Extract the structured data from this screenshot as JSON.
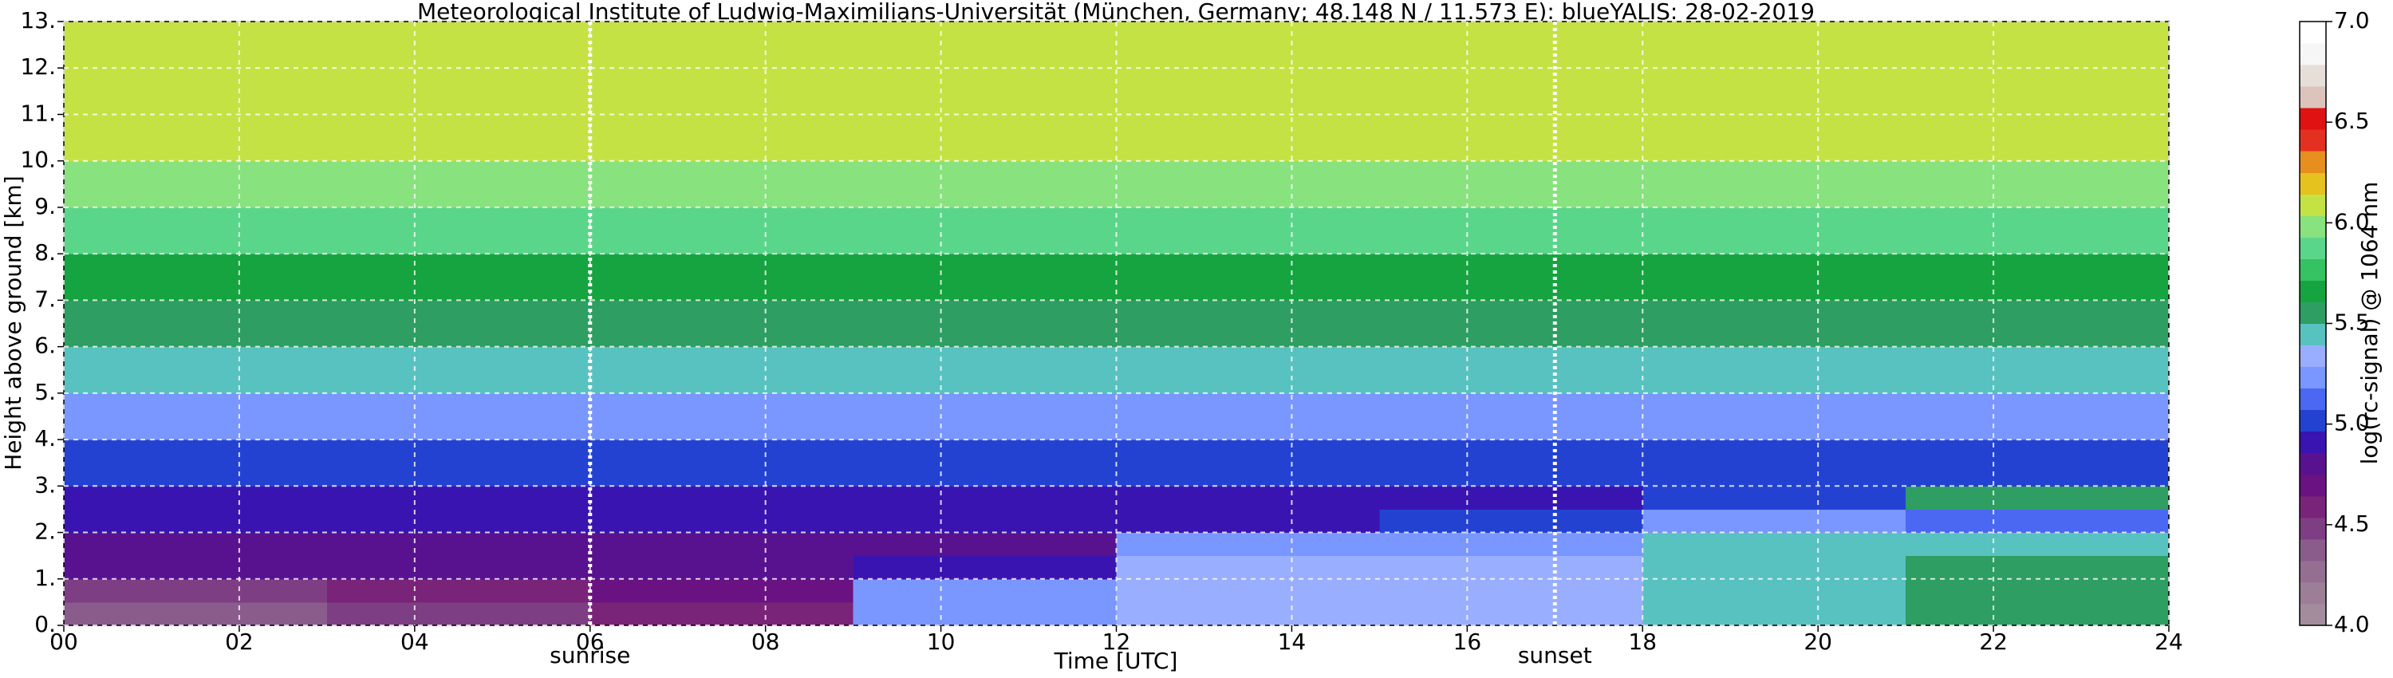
{
  "chart_data": {
    "type": "heatmap",
    "title": "Meteorological Institute of Ludwig-Maximilians-Universität (München, Germany; 48.148 N / 11.573 E):    blueYALIS: 28-02-2019",
    "xlabel": "Time [UTC]",
    "ylabel": "Height above ground [km]",
    "colorbar_label": "log(rc-signal) @ 1064 nm",
    "x_edges": [
      0,
      3,
      6,
      9,
      12,
      15,
      18,
      21,
      24
    ],
    "y_edges": [
      0,
      0.5,
      1,
      1.5,
      2,
      2.5,
      3,
      4,
      5,
      6,
      7,
      8,
      9,
      10,
      11,
      12,
      13
    ],
    "z": [
      [
        4.4,
        4.5,
        4.6,
        5.2,
        5.3,
        5.3,
        5.4,
        5.6
      ],
      [
        4.5,
        4.6,
        4.7,
        5.2,
        5.3,
        5.3,
        5.4,
        5.6
      ],
      [
        4.8,
        4.8,
        4.8,
        4.9,
        5.3,
        5.3,
        5.4,
        5.5
      ],
      [
        4.8,
        4.8,
        4.8,
        4.8,
        5.2,
        5.2,
        5.4,
        5.4
      ],
      [
        4.9,
        4.9,
        4.9,
        4.9,
        4.9,
        5.0,
        5.2,
        5.1
      ],
      [
        4.9,
        4.9,
        4.9,
        4.9,
        4.9,
        4.9,
        5.0,
        5.5
      ],
      [
        5.0,
        5.0,
        5.0,
        5.0,
        5.0,
        5.0,
        5.0,
        5.0
      ],
      [
        5.2,
        5.2,
        5.2,
        5.2,
        5.2,
        5.2,
        5.2,
        5.2
      ],
      [
        5.4,
        5.4,
        5.4,
        5.4,
        5.4,
        5.4,
        5.4,
        5.4
      ],
      [
        5.6,
        5.6,
        5.6,
        5.6,
        5.6,
        5.6,
        5.6,
        5.6
      ],
      [
        5.7,
        5.7,
        5.7,
        5.7,
        5.7,
        5.7,
        5.7,
        5.7
      ],
      [
        5.9,
        5.9,
        5.9,
        5.9,
        5.9,
        5.9,
        5.9,
        5.9
      ],
      [
        6.0,
        6.0,
        6.0,
        6.0,
        6.0,
        6.0,
        6.0,
        6.0
      ],
      [
        6.1,
        6.1,
        6.1,
        6.1,
        6.1,
        6.1,
        6.1,
        6.1
      ],
      [
        6.1,
        6.1,
        6.1,
        6.1,
        6.1,
        6.1,
        6.1,
        6.1
      ],
      [
        6.1,
        6.1,
        6.1,
        6.1,
        6.1,
        6.1,
        6.1,
        6.1
      ]
    ],
    "xlim": [
      0,
      24
    ],
    "ylim": [
      0,
      13
    ],
    "zlim": [
      4,
      7
    ],
    "xticks": [
      {
        "value": 0,
        "label": "00"
      },
      {
        "value": 2,
        "label": "02"
      },
      {
        "value": 4,
        "label": "04"
      },
      {
        "value": 6,
        "label": "06"
      },
      {
        "value": 8,
        "label": "08"
      },
      {
        "value": 10,
        "label": "10"
      },
      {
        "value": 12,
        "label": "12"
      },
      {
        "value": 14,
        "label": "14"
      },
      {
        "value": 16,
        "label": "16"
      },
      {
        "value": 18,
        "label": "18"
      },
      {
        "value": 20,
        "label": "20"
      },
      {
        "value": 22,
        "label": "22"
      },
      {
        "value": 24,
        "label": "24"
      }
    ],
    "yticks": [
      {
        "value": 0,
        "label": "0."
      },
      {
        "value": 1,
        "label": "1."
      },
      {
        "value": 2,
        "label": "2."
      },
      {
        "value": 3,
        "label": "3."
      },
      {
        "value": 4,
        "label": "4."
      },
      {
        "value": 5,
        "label": "5."
      },
      {
        "value": 6,
        "label": "6."
      },
      {
        "value": 7,
        "label": "7."
      },
      {
        "value": 8,
        "label": "8."
      },
      {
        "value": 9,
        "label": "9."
      },
      {
        "value": 10,
        "label": "10."
      },
      {
        "value": 11,
        "label": "11."
      },
      {
        "value": 12,
        "label": "12."
      },
      {
        "value": 13,
        "label": "13."
      }
    ],
    "zticks": [
      {
        "value": 4,
        "label": "4.0"
      },
      {
        "value": 4.5,
        "label": "4.5"
      },
      {
        "value": 5,
        "label": "5.0"
      },
      {
        "value": 5.5,
        "label": "5.5"
      },
      {
        "value": 6,
        "label": "6.0"
      },
      {
        "value": 6.5,
        "label": "6.5"
      },
      {
        "value": 7,
        "label": "7.0"
      }
    ],
    "colormap": [
      "#a38d9c",
      "#9c7f97",
      "#946f92",
      "#8a5c8c",
      "#7e3e83",
      "#7a2479",
      "#6a1282",
      "#58128f",
      "#3a14b0",
      "#2442d2",
      "#4a68f2",
      "#7a96ff",
      "#9aaeff",
      "#58c2c0",
      "#2e9e62",
      "#16a440",
      "#34c262",
      "#5ad68a",
      "#88e27e",
      "#c4e244",
      "#e6c21e",
      "#e68e1e",
      "#e43020",
      "#e01212",
      "#dcc4bc",
      "#e6dfd8",
      "#f6f6f6",
      "#ffffff"
    ],
    "grid": true,
    "annotations": [
      {
        "text": "sunrise",
        "x": 6
      },
      {
        "text": "sunset",
        "x": 17
      }
    ]
  }
}
